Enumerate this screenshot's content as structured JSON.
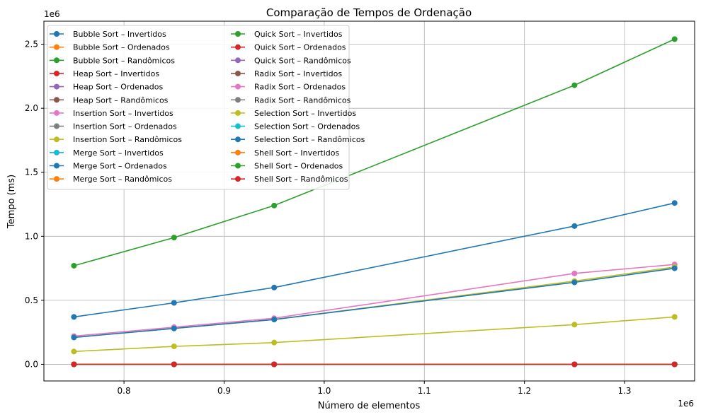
{
  "chart_data": {
    "type": "line",
    "title": "Comparação de Tempos de Ordenação",
    "xlabel": "Número de elementos",
    "ylabel": "Tempo (ms)",
    "x_offset_label": "1e6",
    "y_offset_label": "1e6",
    "xlim": [
      0.72,
      1.37
    ],
    "ylim": [
      -0.13,
      2.68
    ],
    "xticks": [
      0.8,
      0.9,
      1.0,
      1.1,
      1.2,
      1.3
    ],
    "xtick_labels": [
      "0.8",
      "0.9",
      "1.0",
      "1.1",
      "1.2",
      "1.3"
    ],
    "yticks": [
      0.0,
      0.5,
      1.0,
      1.5,
      2.0,
      2.5
    ],
    "ytick_labels": [
      "0.0",
      "0.5",
      "1.0",
      "1.5",
      "2.0",
      "2.5"
    ],
    "grid": true,
    "legend_position": "upper-left",
    "x": [
      0.75,
      0.85,
      0.95,
      1.25,
      1.35
    ],
    "series": [
      {
        "name": "Bubble Sort – Invertidos",
        "color": "#1f77b4",
        "values": [
          0.37,
          0.48,
          0.6,
          1.08,
          1.26
        ]
      },
      {
        "name": "Bubble Sort – Ordenados",
        "color": "#ff7f0e",
        "values": [
          0,
          0,
          0,
          0,
          0
        ]
      },
      {
        "name": "Bubble Sort – Randômicos",
        "color": "#2ca02c",
        "values": [
          0.77,
          0.99,
          1.24,
          2.18,
          2.54
        ]
      },
      {
        "name": "Heap Sort – Invertidos",
        "color": "#d62728",
        "values": [
          0,
          0,
          0,
          0,
          0
        ]
      },
      {
        "name": "Heap Sort – Ordenados",
        "color": "#9467bd",
        "values": [
          0,
          0,
          0,
          0,
          0
        ]
      },
      {
        "name": "Heap Sort – Randômicos",
        "color": "#8c564b",
        "values": [
          0,
          0,
          0,
          0,
          0
        ]
      },
      {
        "name": "Insertion Sort – Invertidos",
        "color": "#e377c2",
        "values": [
          0.22,
          0.29,
          0.36,
          0.71,
          0.78
        ]
      },
      {
        "name": "Insertion Sort – Ordenados",
        "color": "#7f7f7f",
        "values": [
          0,
          0,
          0,
          0,
          0
        ]
      },
      {
        "name": "Insertion Sort – Randômicos",
        "color": "#bcbd22",
        "values": [
          0.21,
          0.28,
          0.35,
          0.65,
          0.76
        ]
      },
      {
        "name": "Merge Sort – Invertidos",
        "color": "#17becf",
        "values": [
          0,
          0,
          0,
          0,
          0
        ]
      },
      {
        "name": "Merge Sort – Ordenados",
        "color": "#1f77b4",
        "values": [
          0.21,
          0.28,
          0.35,
          0.64,
          0.75
        ]
      },
      {
        "name": "Merge Sort – Randômicos",
        "color": "#ff7f0e",
        "values": [
          0,
          0,
          0,
          0,
          0
        ]
      },
      {
        "name": "Quick Sort – Invertidos",
        "color": "#2ca02c",
        "values": [
          0,
          0,
          0,
          0,
          0
        ]
      },
      {
        "name": "Quick Sort – Ordenados",
        "color": "#d62728",
        "values": [
          0,
          0,
          0,
          0,
          0
        ]
      },
      {
        "name": "Quick Sort – Randômicos",
        "color": "#9467bd",
        "values": [
          0,
          0,
          0,
          0,
          0
        ]
      },
      {
        "name": "Radix Sort – Invertidos",
        "color": "#8c564b",
        "values": [
          0,
          0,
          0,
          0,
          0
        ]
      },
      {
        "name": "Radix Sort – Ordenados",
        "color": "#e377c2",
        "values": [
          0,
          0,
          0,
          0,
          0
        ]
      },
      {
        "name": "Radix Sort – Randômicos",
        "color": "#7f7f7f",
        "values": [
          0,
          0,
          0,
          0,
          0
        ]
      },
      {
        "name": "Selection Sort – Invertidos",
        "color": "#bcbd22",
        "values": [
          0.1,
          0.14,
          0.17,
          0.31,
          0.37
        ]
      },
      {
        "name": "Selection Sort – Ordenados",
        "color": "#17becf",
        "values": [
          0,
          0,
          0,
          0,
          0
        ]
      },
      {
        "name": "Selection Sort – Randômicos",
        "color": "#1f77b4",
        "values": [
          0,
          0,
          0,
          0,
          0
        ]
      },
      {
        "name": "Shell Sort – Invertidos",
        "color": "#ff7f0e",
        "values": [
          0,
          0,
          0,
          0,
          0
        ]
      },
      {
        "name": "Shell Sort – Ordenados",
        "color": "#2ca02c",
        "values": [
          0,
          0,
          0,
          0,
          0
        ]
      },
      {
        "name": "Shell Sort – Randômicos",
        "color": "#d62728",
        "values": [
          0,
          0,
          0,
          0,
          0
        ]
      }
    ]
  }
}
